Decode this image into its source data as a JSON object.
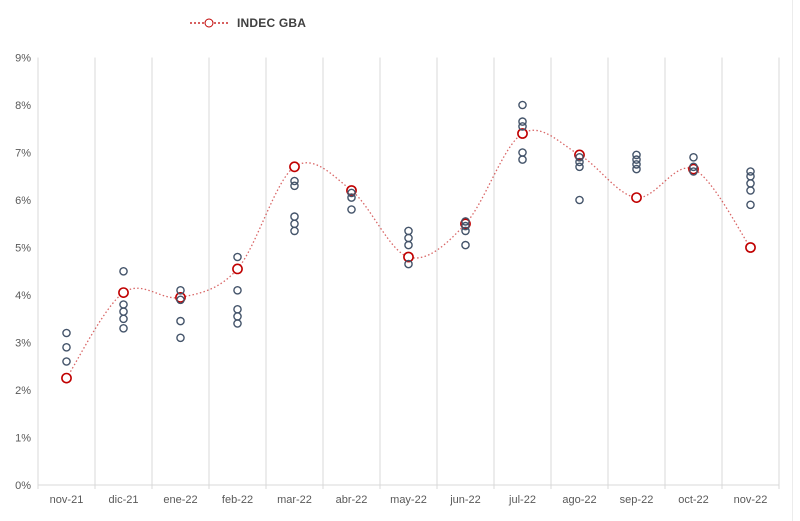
{
  "palette": {
    "indec_red": "#C00000",
    "estimate_gray": "#44546A",
    "gridline": "#D9D9D9",
    "axis_text": "#595959",
    "legend_text": "#404040",
    "background": "#FFFFFF"
  },
  "chart_data": {
    "type": "scatter",
    "title": "",
    "legend": {
      "position": "top-center",
      "entries": [
        "INDEC GBA"
      ]
    },
    "categories": [
      "nov-21",
      "dic-21",
      "ene-22",
      "feb-22",
      "mar-22",
      "abr-22",
      "may-22",
      "jun-22",
      "jul-22",
      "ago-22",
      "sep-22",
      "oct-22",
      "nov-22"
    ],
    "ylim": [
      0,
      9
    ],
    "ytick_labels": [
      "0%",
      "1%",
      "2%",
      "3%",
      "4%",
      "5%",
      "6%",
      "7%",
      "8%",
      "9%"
    ],
    "grid": "vertical-only",
    "series": [
      {
        "name": "INDEC GBA",
        "type": "smooth-dotted-line-with-open-markers",
        "color": "#C00000",
        "values": [
          2.25,
          4.05,
          3.95,
          4.55,
          6.7,
          6.2,
          4.8,
          5.5,
          7.4,
          6.95,
          6.05,
          6.65,
          5.0
        ]
      },
      {
        "type": "scatter-open-circles",
        "color": "#44546A",
        "values_by_category": [
          [
            3.2,
            2.9,
            2.6
          ],
          [
            4.5,
            3.8,
            3.65,
            3.5,
            3.3
          ],
          [
            4.1,
            3.9,
            3.45,
            3.1
          ],
          [
            4.8,
            4.1,
            3.7,
            3.55,
            3.4
          ],
          [
            6.4,
            6.3,
            5.65,
            5.5,
            5.35
          ],
          [
            6.15,
            6.05,
            5.8
          ],
          [
            5.35,
            5.2,
            5.05,
            4.65
          ],
          [
            5.55,
            5.45,
            5.35,
            5.05
          ],
          [
            8.0,
            7.65,
            7.55,
            7.0,
            6.85
          ],
          [
            6.9,
            6.8,
            6.7,
            6.0
          ],
          [
            6.95,
            6.85,
            6.75,
            6.65
          ],
          [
            6.9,
            6.7,
            6.6
          ],
          [
            6.6,
            6.5,
            6.35,
            6.2,
            5.9
          ]
        ]
      }
    ]
  }
}
